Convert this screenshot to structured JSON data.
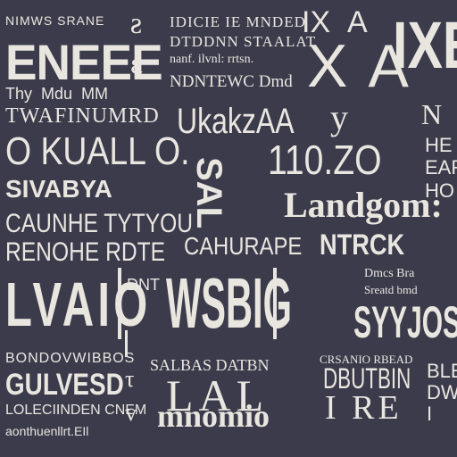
{
  "palette": {
    "background": "#3b3b4b",
    "ink": "#e9e6e0"
  },
  "words": {
    "eneee": "ENEEE",
    "kualel": "O KUALL O.",
    "sivabya": "SIVABYA",
    "caunhe": "CAUNHE TYTYOU",
    "renohe": "RENOHE RDTE",
    "ukakza": "UkakzAA",
    "num": "110.ZO",
    "landgom": "Landgom:",
    "cahurape": "CAHURAPE",
    "ntrck": "NTRCK",
    "guvesd": "GULVESD",
    "mnomio": "mnomio",
    "dbutbin": "DBUTBIN",
    "ire": "I RE",
    "xa": "X A",
    "ixe": "IXE",
    "syjos": "SYYJOS",
    "wsbig": "WSBIG",
    "lal": "LAL"
  }
}
